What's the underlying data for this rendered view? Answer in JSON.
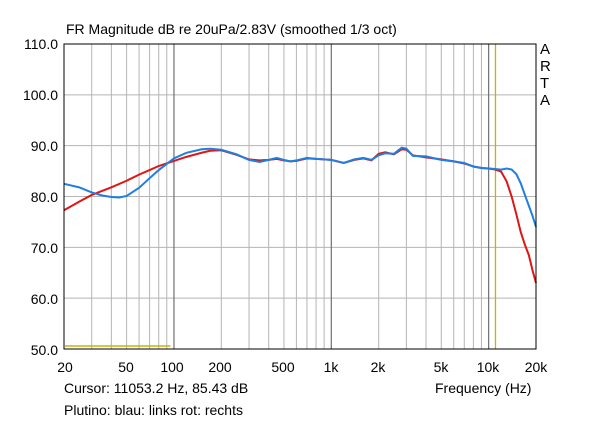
{
  "title": "FR Magnitude dB re 20uPa/2.83V (smoothed 1/3 oct)",
  "brand_letters": [
    "A",
    "R",
    "T",
    "A"
  ],
  "cursor_text": "Cursor: 11053.2 Hz, 85.43 dB",
  "xlabel": "Frequency (Hz)",
  "legend_text": "Plutino: blau: links    rot: rechts",
  "colors": {
    "grid": "#b5b5b5",
    "axis": "#000000",
    "left_series": "#1f7fe0",
    "right_series": "#e01515",
    "cursor_marker": "#c8b400"
  },
  "chart_data": {
    "type": "line",
    "x_scale": "log",
    "xlim": [
      20,
      20000
    ],
    "ylim": [
      50,
      110
    ],
    "x_ticks": [
      20,
      50,
      100,
      200,
      500,
      1000,
      2000,
      5000,
      10000,
      20000
    ],
    "x_tick_labels": [
      "20",
      "50",
      "100",
      "200",
      "500",
      "1k",
      "2k",
      "5k",
      "10k",
      "20k"
    ],
    "y_ticks": [
      50,
      60,
      70,
      80,
      90,
      100,
      110
    ],
    "y_tick_labels": [
      "50.0",
      "60.0",
      "70.0",
      "80.0",
      "90.0",
      "100.0",
      "110.0"
    ],
    "grid": true,
    "cursor": {
      "frequency": 11053.2,
      "level": 85.43
    },
    "reference_line": {
      "x": [
        20,
        95
      ],
      "y": 50.6
    },
    "series": [
      {
        "color_key": "left_series",
        "points": [
          [
            20,
            82.5
          ],
          [
            25,
            81.8
          ],
          [
            30,
            80.8
          ],
          [
            35,
            80.2
          ],
          [
            40,
            79.9
          ],
          [
            45,
            79.8
          ],
          [
            50,
            80.1
          ],
          [
            60,
            81.7
          ],
          [
            70,
            83.6
          ],
          [
            80,
            85.2
          ],
          [
            100,
            87.5
          ],
          [
            120,
            88.6
          ],
          [
            150,
            89.3
          ],
          [
            170,
            89.4
          ],
          [
            200,
            89.2
          ],
          [
            250,
            88.3
          ],
          [
            300,
            87.2
          ],
          [
            350,
            86.8
          ],
          [
            400,
            87.2
          ],
          [
            450,
            87.6
          ],
          [
            500,
            87.2
          ],
          [
            550,
            86.9
          ],
          [
            600,
            87.1
          ],
          [
            700,
            87.6
          ],
          [
            800,
            87.4
          ],
          [
            1000,
            87.2
          ],
          [
            1200,
            86.6
          ],
          [
            1400,
            87.3
          ],
          [
            1600,
            87.6
          ],
          [
            1800,
            87.2
          ],
          [
            2000,
            88.1
          ],
          [
            2200,
            88.5
          ],
          [
            2500,
            88.4
          ],
          [
            2800,
            89.6
          ],
          [
            3000,
            89.4
          ],
          [
            3300,
            88.0
          ],
          [
            4000,
            87.9
          ],
          [
            5000,
            87.2
          ],
          [
            6000,
            86.9
          ],
          [
            7000,
            86.6
          ],
          [
            8000,
            85.9
          ],
          [
            9000,
            85.6
          ],
          [
            10000,
            85.5
          ],
          [
            11000,
            85.4
          ],
          [
            12000,
            85.3
          ],
          [
            13000,
            85.5
          ],
          [
            14000,
            85.3
          ],
          [
            15000,
            84.4
          ],
          [
            16000,
            82.6
          ],
          [
            17000,
            80.3
          ],
          [
            18000,
            78.2
          ],
          [
            19000,
            76.2
          ],
          [
            20000,
            74.0
          ]
        ]
      },
      {
        "color_key": "right_series",
        "points": [
          [
            20,
            77.3
          ],
          [
            25,
            79.0
          ],
          [
            30,
            80.3
          ],
          [
            40,
            81.8
          ],
          [
            50,
            83.1
          ],
          [
            60,
            84.3
          ],
          [
            70,
            85.2
          ],
          [
            80,
            86.0
          ],
          [
            100,
            87.0
          ],
          [
            120,
            87.8
          ],
          [
            150,
            88.6
          ],
          [
            170,
            89.0
          ],
          [
            200,
            89.1
          ],
          [
            250,
            88.2
          ],
          [
            300,
            87.3
          ],
          [
            350,
            87.1
          ],
          [
            400,
            87.2
          ],
          [
            450,
            87.4
          ],
          [
            500,
            87.1
          ],
          [
            550,
            86.9
          ],
          [
            600,
            87.0
          ],
          [
            700,
            87.5
          ],
          [
            800,
            87.4
          ],
          [
            1000,
            87.2
          ],
          [
            1200,
            86.6
          ],
          [
            1400,
            87.2
          ],
          [
            1600,
            87.5
          ],
          [
            1800,
            87.1
          ],
          [
            2000,
            88.4
          ],
          [
            2200,
            88.7
          ],
          [
            2500,
            88.3
          ],
          [
            2800,
            89.3
          ],
          [
            3000,
            89.2
          ],
          [
            3300,
            88.1
          ],
          [
            4000,
            87.7
          ],
          [
            5000,
            87.3
          ],
          [
            6000,
            86.9
          ],
          [
            7000,
            86.5
          ],
          [
            8000,
            85.9
          ],
          [
            9000,
            85.6
          ],
          [
            10000,
            85.5
          ],
          [
            11000,
            85.3
          ],
          [
            12000,
            84.9
          ],
          [
            13000,
            83.0
          ],
          [
            14000,
            80.0
          ],
          [
            15000,
            76.5
          ],
          [
            16000,
            73.0
          ],
          [
            17000,
            70.5
          ],
          [
            18000,
            68.5
          ],
          [
            19000,
            65.5
          ],
          [
            20000,
            63.0
          ]
        ]
      }
    ]
  }
}
